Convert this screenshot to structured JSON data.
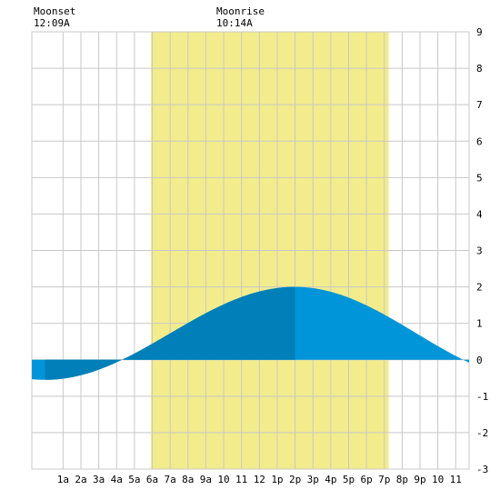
{
  "chart_data": {
    "type": "area",
    "title": "",
    "xlabel": "",
    "ylabel": "",
    "ylim": [
      -3,
      9
    ],
    "y_ticks": [
      -3,
      -2,
      -1,
      0,
      1,
      2,
      3,
      4,
      5,
      6,
      7,
      8,
      9
    ],
    "y_tick_side": "right",
    "x_hour_range": [
      -0.75,
      23.75
    ],
    "x_ticks": [
      {
        "hour": 1,
        "label": "1a"
      },
      {
        "hour": 2,
        "label": "2a"
      },
      {
        "hour": 3,
        "label": "3a"
      },
      {
        "hour": 4,
        "label": "4a"
      },
      {
        "hour": 5,
        "label": "5a"
      },
      {
        "hour": 6,
        "label": "6a"
      },
      {
        "hour": 7,
        "label": "7a"
      },
      {
        "hour": 8,
        "label": "8a"
      },
      {
        "hour": 9,
        "label": "9a"
      },
      {
        "hour": 10,
        "label": "10"
      },
      {
        "hour": 11,
        "label": "11"
      },
      {
        "hour": 12,
        "label": "12"
      },
      {
        "hour": 13,
        "label": "1p"
      },
      {
        "hour": 14,
        "label": "2p"
      },
      {
        "hour": 15,
        "label": "3p"
      },
      {
        "hour": 16,
        "label": "4p"
      },
      {
        "hour": 17,
        "label": "5p"
      },
      {
        "hour": 18,
        "label": "6p"
      },
      {
        "hour": 19,
        "label": "7p"
      },
      {
        "hour": 20,
        "label": "8p"
      },
      {
        "hour": 21,
        "label": "9p"
      },
      {
        "hour": 22,
        "label": "10"
      },
      {
        "hour": 23,
        "label": "11"
      }
    ],
    "daylight_hours": [
      5.92,
      19.25
    ],
    "tide": {
      "low": {
        "hour": 0.0,
        "value": -0.55
      },
      "high": {
        "hour": 14.0,
        "value": 2.0
      },
      "low_next": {
        "hour": 27.6,
        "value": -0.55
      }
    },
    "highlight_hours": [
      0.0,
      14.0
    ],
    "grid": true,
    "colors": {
      "daylight": "#f3ec8c",
      "water": "#0095d8",
      "water_highlight": "#007fb8",
      "grid": "#c8c8c8"
    }
  },
  "events": {
    "moonset": {
      "label": "Moonset",
      "time": "12:09A"
    },
    "moonrise": {
      "label": "Moonrise",
      "time": "10:14A"
    }
  }
}
